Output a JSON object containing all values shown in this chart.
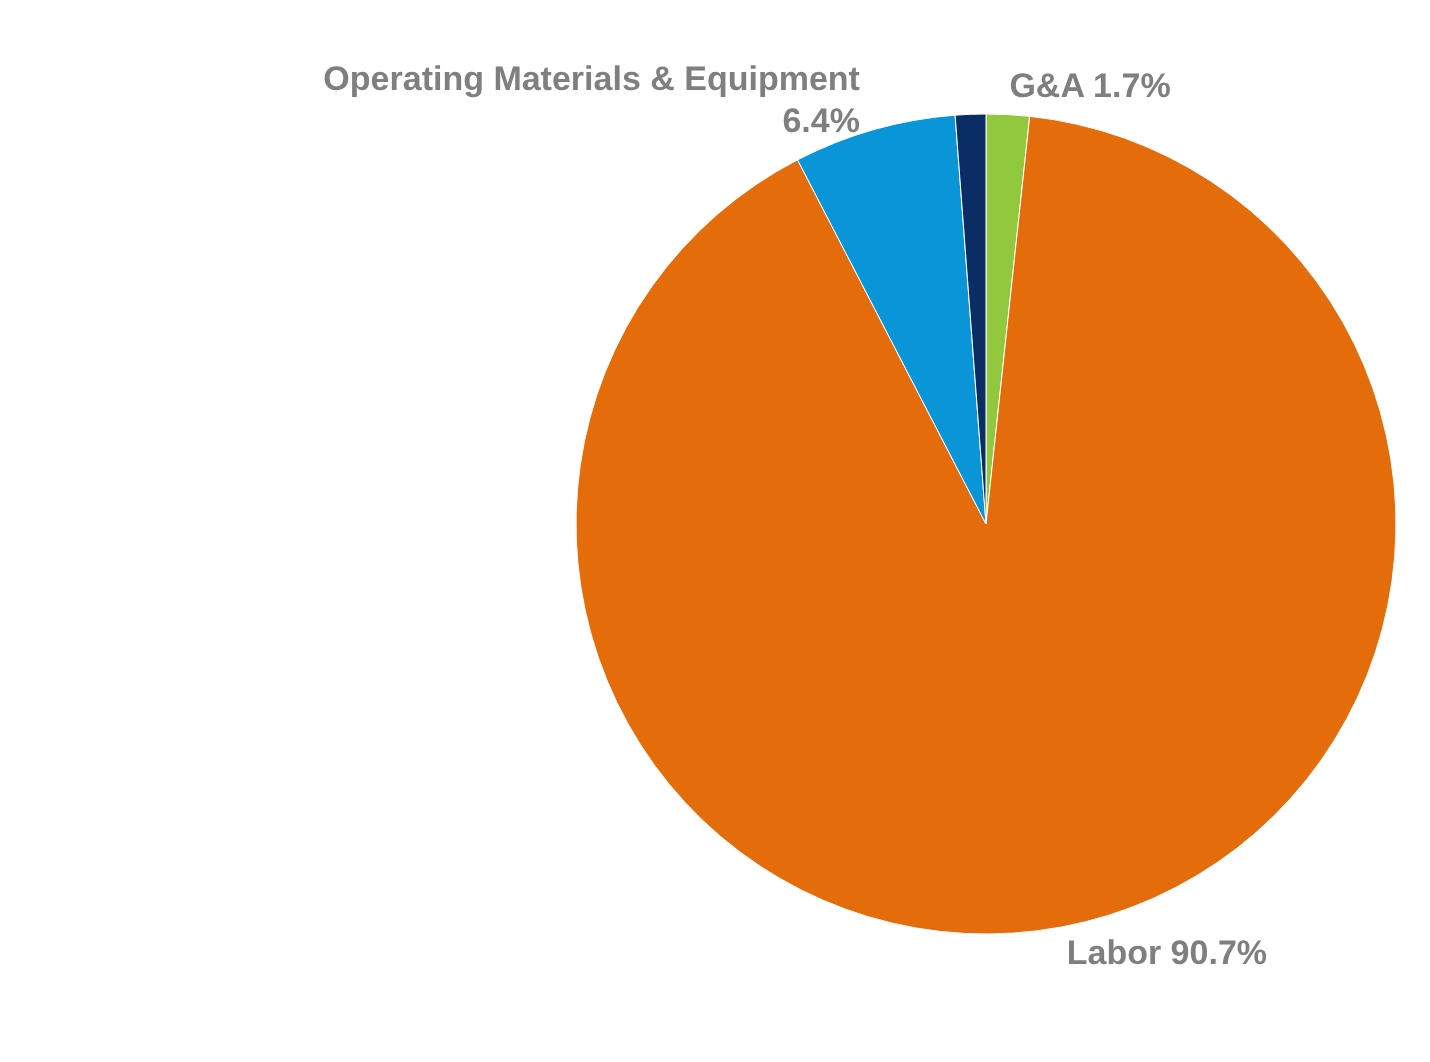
{
  "chart_data": {
    "type": "pie",
    "categories": [
      "G&A",
      "Labor",
      "Operating Materials & Equipment",
      null
    ],
    "values": [
      1.7,
      90.7,
      6.4,
      1.2
    ],
    "value_labels": [
      "1.7%",
      "90.7%",
      "6.4%",
      null
    ],
    "colors": [
      "#92c83e",
      "#e46c0a",
      "#0a95d8",
      "#0b2d66"
    ]
  }
}
